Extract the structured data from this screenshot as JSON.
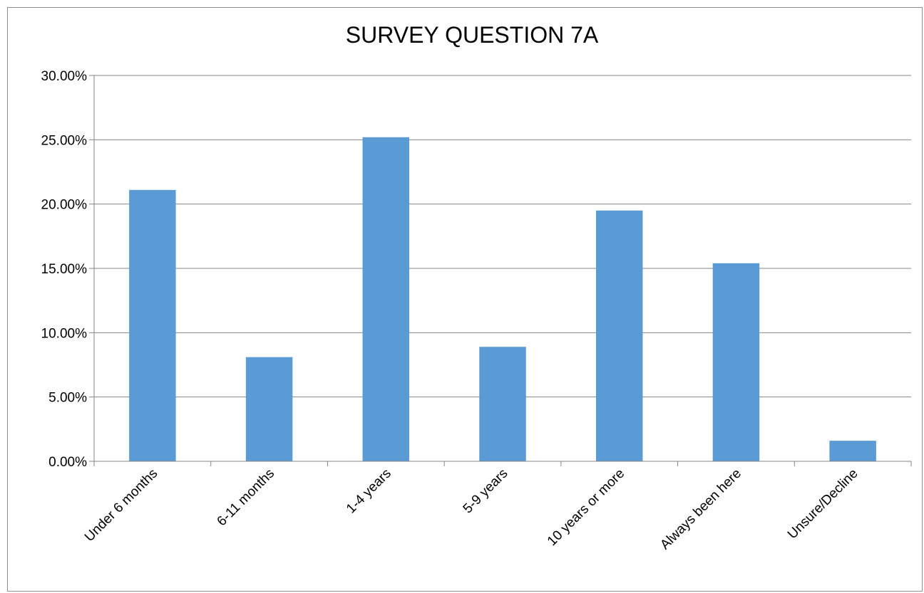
{
  "chart_data": {
    "type": "bar",
    "title": "SURVEY QUESTION 7A",
    "xlabel": "",
    "ylabel": "",
    "categories": [
      "Under 6 months",
      "6-11 months",
      "1-4 years",
      "5-9 years",
      "10 years or more",
      "Always been here",
      "Unsure/Decline"
    ],
    "values": [
      21.1,
      8.1,
      25.2,
      8.9,
      19.5,
      15.4,
      1.6
    ],
    "ylim": [
      0,
      30
    ],
    "yticks": [
      "0.00%",
      "5.00%",
      "10.00%",
      "15.00%",
      "20.00%",
      "25.00%",
      "30.00%"
    ],
    "grid": true,
    "legend": "none",
    "bar_color": "#5b9bd5"
  }
}
